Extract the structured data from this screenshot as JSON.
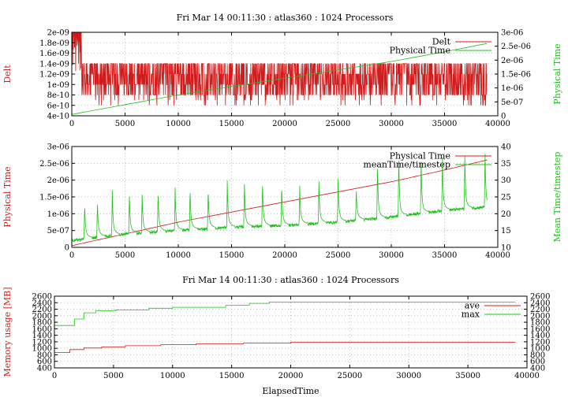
{
  "colors": {
    "red": "#d01c1c",
    "green": "#22c01e",
    "axis": "#000000",
    "grid": "#b4b4b4"
  },
  "chart_data": [
    {
      "type": "line",
      "title": "Fri Mar 14 00:11:30 : atlas360 : 1024 Processors",
      "xlabel": "",
      "ylabel": "Delt",
      "y2label": "Physical Time",
      "xlim": [
        0,
        40000
      ],
      "ylim": [
        4e-10,
        2e-09
      ],
      "y2lim": [
        0,
        3e-06
      ],
      "xticks": [
        0,
        5000,
        10000,
        15000,
        20000,
        25000,
        30000,
        35000,
        40000
      ],
      "xtick_labels": [
        "0",
        "5000",
        "10000",
        "15000",
        "20000",
        "25000",
        "30000",
        "35000",
        "40000"
      ],
      "yticks": [
        4e-10,
        6e-10,
        8e-10,
        1e-09,
        1.2e-09,
        1.4e-09,
        1.6e-09,
        1.8e-09,
        2e-09
      ],
      "ytick_labels": [
        "4e-10",
        "6e-10",
        "8e-10",
        "1e-09",
        "1.2e-09",
        "1.4e-09",
        "1.6e-09",
        "1.8e-09",
        "2e-09"
      ],
      "y2ticks": [
        0,
        5e-07,
        1e-06,
        1.5e-06,
        2e-06,
        2.5e-06,
        3e-06
      ],
      "y2tick_labels": [
        "0",
        "5e-07",
        "1e-06",
        "1.5e-06",
        "2e-06",
        "2.5e-06",
        "3e-06"
      ],
      "grid": true,
      "legend_position": "top-right",
      "series": [
        {
          "name": "Delt",
          "color": "red",
          "axis": "y",
          "style": "noisy",
          "x_range": [
            0,
            39000
          ],
          "base_levels": [
            8e-10,
            1e-09,
            1.2e-09,
            1.4e-09
          ],
          "dip_levels": [
            6e-10,
            7e-10
          ],
          "early": {
            "x_max": 900,
            "high": 2e-09,
            "low": 1.1e-09
          }
        },
        {
          "name": "Physical Time",
          "color": "green",
          "axis": "y2",
          "x": [
            0,
            5000,
            10000,
            15000,
            20000,
            25000,
            30000,
            35000,
            39000
          ],
          "values": [
            5e-08,
            4e-07,
            7.5e-07,
            1.05e-06,
            1.35e-06,
            1.65e-06,
            1.95e-06,
            2.3e-06,
            2.6e-06
          ]
        }
      ]
    },
    {
      "type": "line",
      "title": "",
      "xlabel": "",
      "ylabel": "Physical Time",
      "y2label": "Mean Time/timestep",
      "xlim": [
        0,
        40000
      ],
      "ylim": [
        0,
        3e-06
      ],
      "y2lim": [
        10,
        40
      ],
      "xticks": [
        0,
        5000,
        10000,
        15000,
        20000,
        25000,
        30000,
        35000,
        40000
      ],
      "xtick_labels": [
        "0",
        "5000",
        "10000",
        "15000",
        "20000",
        "25000",
        "30000",
        "35000",
        "40000"
      ],
      "yticks": [
        0,
        5e-07,
        1e-06,
        1.5e-06,
        2e-06,
        2.5e-06,
        3e-06
      ],
      "ytick_labels": [
        "0",
        "5e-07",
        "1e-06",
        "1.5e-06",
        "2e-06",
        "2.5e-06",
        "3e-06"
      ],
      "y2ticks": [
        10,
        15,
        20,
        25,
        30,
        35,
        40
      ],
      "y2tick_labels": [
        "10",
        "15",
        "20",
        "25",
        "30",
        "35",
        "40"
      ],
      "grid": true,
      "legend_position": "top-right",
      "series": [
        {
          "name": "Physical Time",
          "color": "red",
          "axis": "y",
          "x": [
            0,
            5000,
            10000,
            15000,
            20000,
            25000,
            30000,
            35000,
            39000
          ],
          "values": [
            5e-08,
            4e-07,
            7.5e-07,
            1.05e-06,
            1.35e-06,
            1.65e-06,
            1.95e-06,
            2.3e-06,
            2.6e-06
          ]
        },
        {
          "name": "meanTime/timestep",
          "color": "green",
          "axis": "y2",
          "style": "spiky",
          "x_range": [
            0,
            39000
          ],
          "baseline": {
            "x": [
              0,
              5000,
              10000,
              15000,
              20000,
              25000,
              30000,
              35000,
              39000
            ],
            "values": [
              12,
              14,
              15,
              16,
              16.5,
              17.5,
              19,
              21,
              22
            ]
          },
          "spikes": [
            {
              "x": 1200,
              "value": 21
            },
            {
              "x": 2400,
              "value": 21.5
            },
            {
              "x": 3800,
              "value": 24.5
            },
            {
              "x": 5400,
              "value": 24
            },
            {
              "x": 6600,
              "value": 23.5
            },
            {
              "x": 8100,
              "value": 25
            },
            {
              "x": 9700,
              "value": 25
            },
            {
              "x": 11100,
              "value": 25.5
            },
            {
              "x": 12800,
              "value": 26
            },
            {
              "x": 14600,
              "value": 27
            },
            {
              "x": 16200,
              "value": 27.5
            },
            {
              "x": 17900,
              "value": 28
            },
            {
              "x": 19700,
              "value": 27
            },
            {
              "x": 21400,
              "value": 25.5
            },
            {
              "x": 23200,
              "value": 27.5
            },
            {
              "x": 25000,
              "value": 29
            },
            {
              "x": 26700,
              "value": 25.5
            },
            {
              "x": 28700,
              "value": 33.5
            },
            {
              "x": 30700,
              "value": 36
            },
            {
              "x": 32800,
              "value": 34.5
            },
            {
              "x": 34800,
              "value": 35.5
            },
            {
              "x": 36900,
              "value": 35
            },
            {
              "x": 38800,
              "value": 36
            }
          ]
        }
      ]
    },
    {
      "type": "line",
      "title": "Fri Mar 14 00:11:30 : atlas360 : 1024 Processors",
      "xlabel": "ElapsedTime",
      "ylabel": "Memory usage [MB]",
      "y2label": "",
      "xlim": [
        0,
        40000
      ],
      "ylim": [
        400,
        2600
      ],
      "y2lim": [
        400,
        2600
      ],
      "xticks": [
        0,
        5000,
        10000,
        15000,
        20000,
        25000,
        30000,
        35000,
        40000
      ],
      "xtick_labels": [
        "0",
        "5000",
        "10000",
        "15000",
        "20000",
        "25000",
        "30000",
        "35000",
        "40000"
      ],
      "yticks": [
        400,
        600,
        800,
        1000,
        1200,
        1400,
        1600,
        1800,
        2000,
        2200,
        2400,
        2600
      ],
      "ytick_labels": [
        "400",
        "600",
        "800",
        "1000",
        "1200",
        "1400",
        "1600",
        "1800",
        "2000",
        "2200",
        "2400",
        "2600"
      ],
      "y2ticks": [
        400,
        600,
        800,
        1000,
        1200,
        1400,
        1600,
        1800,
        2000,
        2200,
        2400,
        2600
      ],
      "y2tick_labels": [
        "400",
        "600",
        "800",
        "1000",
        "1200",
        "1400",
        "1600",
        "1800",
        "2000",
        "2200",
        "2400",
        "2600"
      ],
      "grid": true,
      "legend_position": "top-right",
      "series": [
        {
          "name": "ave",
          "color": "red",
          "axis": "y",
          "style": "step",
          "x": [
            0,
            700,
            1300,
            2500,
            4000,
            6000,
            9000,
            12000,
            16000,
            20000,
            39000
          ],
          "values": [
            870,
            870,
            960,
            1010,
            1040,
            1080,
            1110,
            1140,
            1160,
            1180,
            1180
          ]
        },
        {
          "name": "max",
          "color": "green",
          "axis": "y",
          "style": "step",
          "x": [
            0,
            800,
            1700,
            2500,
            3500,
            5200,
            8000,
            10000,
            14500,
            16500,
            18200,
            39000
          ],
          "values": [
            1700,
            1700,
            1900,
            2090,
            2150,
            2180,
            2230,
            2260,
            2320,
            2380,
            2420,
            2420
          ]
        }
      ]
    }
  ]
}
